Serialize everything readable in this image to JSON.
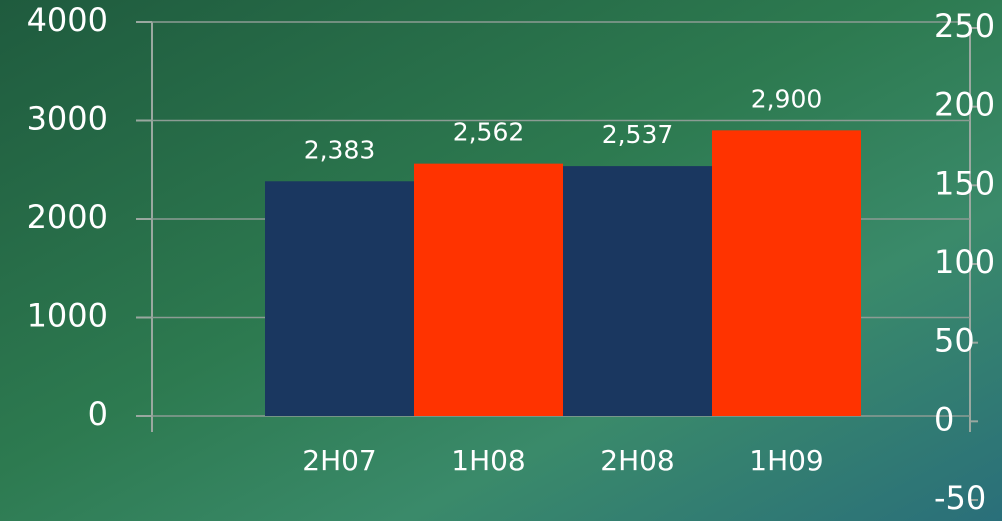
{
  "chart_data": {
    "type": "bar",
    "categories": [
      "2H07",
      "1H08",
      "2H08",
      "1H09"
    ],
    "values": [
      2383,
      2562,
      2537,
      2900
    ],
    "value_labels": [
      "2,383",
      "2,562",
      "2,537",
      "2,900"
    ],
    "colors": [
      "#1a3760",
      "#ff3300",
      "#1a3760",
      "#ff3300"
    ],
    "ylim": [
      0,
      4000
    ],
    "yticks": [
      0,
      1000,
      2000,
      3000,
      4000
    ],
    "y2lim": [
      -50,
      250
    ],
    "y2ticks": [
      -50,
      0,
      50,
      100,
      150,
      200,
      250
    ],
    "grid": true
  }
}
